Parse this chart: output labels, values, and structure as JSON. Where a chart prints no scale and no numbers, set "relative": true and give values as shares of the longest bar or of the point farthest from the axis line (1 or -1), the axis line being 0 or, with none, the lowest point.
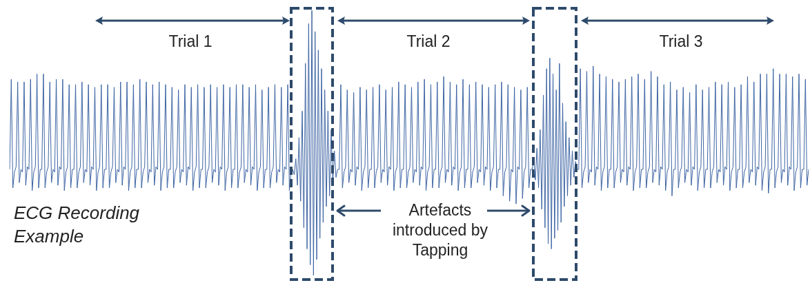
{
  "chart_data": {
    "type": "line",
    "relative": true,
    "marker": "none",
    "line_style": "solid",
    "legend": false,
    "annotations": [
      "Trial 1",
      "Trial 2",
      "Trial 3",
      "ECG Recording Example",
      "Artefacts introduced by Tapping"
    ],
    "categories": [
      null,
      null,
      null,
      null,
      null,
      null,
      null,
      null,
      null,
      null,
      null,
      null,
      null,
      null,
      null,
      null,
      null,
      null,
      null,
      null,
      null,
      null,
      null,
      null,
      null,
      null,
      null,
      null,
      null,
      null,
      null,
      null,
      null,
      null,
      null,
      null,
      null,
      null,
      null,
      null,
      null,
      null,
      null,
      null,
      null,
      null,
      null,
      null,
      null,
      null,
      null,
      null,
      null,
      null,
      null,
      null,
      null,
      null,
      null,
      null,
      null,
      null,
      null,
      null,
      null,
      null,
      null,
      null,
      null,
      null,
      null,
      null,
      null,
      null,
      null,
      null,
      null,
      null,
      null,
      null,
      null,
      null,
      null,
      null,
      null,
      null,
      null,
      null,
      null,
      null,
      null,
      null,
      null,
      null,
      null,
      null,
      null,
      null,
      null,
      null,
      null,
      null,
      null,
      null,
      null,
      null,
      null,
      null,
      null,
      null,
      null,
      null,
      null,
      null,
      null,
      null,
      null,
      null,
      null,
      null,
      null,
      null,
      null,
      null,
      null,
      null,
      null,
      null,
      null,
      null,
      null,
      null,
      null,
      null,
      null,
      null,
      null,
      null,
      null,
      null,
      null,
      null,
      null,
      null,
      null,
      null,
      null,
      null,
      null,
      null,
      null,
      null,
      null,
      null,
      null,
      null,
      null,
      null,
      null,
      null,
      null,
      null,
      null,
      null,
      null,
      null,
      null,
      null,
      null,
      null,
      null,
      null,
      null,
      null,
      null,
      null,
      null,
      null,
      null,
      null,
      null,
      null,
      null,
      null,
      null,
      null,
      null,
      null,
      null,
      null,
      null,
      null,
      null,
      null,
      null,
      null,
      null,
      null,
      null,
      null,
      null,
      null,
      null,
      null,
      null,
      null,
      null,
      null,
      null,
      null,
      null,
      null,
      null,
      null,
      null,
      null,
      null,
      null,
      null,
      null,
      null,
      null,
      null,
      null,
      null,
      null,
      null,
      null,
      null,
      null,
      null,
      null,
      null,
      null,
      null,
      null,
      null,
      null,
      null,
      null,
      null,
      null,
      null,
      null,
      null,
      null,
      null,
      null,
      null,
      null,
      null,
      null,
      null,
      null,
      null,
      null,
      null,
      null,
      null,
      null,
      null,
      null,
      null,
      null,
      null,
      null,
      null,
      null,
      null,
      null,
      null,
      null,
      null,
      null,
      null,
      null,
      null,
      null,
      null,
      null,
      null,
      null,
      null,
      null,
      null,
      null,
      null,
      null,
      null,
      null,
      null,
      null,
      null,
      null,
      null,
      null,
      null,
      null,
      null,
      null,
      null,
      null,
      null,
      null,
      null,
      null,
      null,
      null,
      null,
      null,
      null,
      null,
      null,
      null,
      null,
      null,
      null,
      null,
      null,
      null,
      null,
      null,
      null,
      null,
      null,
      null,
      null,
      null,
      null,
      null,
      null,
      null,
      null,
      null,
      null,
      null,
      null,
      null,
      null,
      null,
      null,
      null,
      null,
      null,
      null,
      null,
      null,
      null,
      null,
      null,
      null,
      null,
      null,
      null,
      null,
      null,
      null,
      null,
      null,
      null,
      null,
      null,
      null,
      null,
      null,
      null,
      null,
      null,
      null,
      null,
      null,
      null,
      null,
      null,
      null,
      null,
      null,
      null,
      null,
      null,
      null,
      null,
      null,
      null,
      null,
      null,
      null,
      null,
      null,
      null,
      null,
      null,
      null,
      null,
      null,
      null,
      null,
      null,
      null,
      null,
      null,
      null,
      null,
      null,
      null,
      null,
      null,
      null,
      null,
      null,
      null,
      null,
      null,
      null,
      null,
      null,
      null,
      null,
      null,
      null,
      null,
      null,
      null,
      null,
      null,
      null,
      null,
      null,
      null,
      null,
      null,
      null,
      null,
      null,
      null,
      null,
      null,
      null,
      null,
      null,
      null,
      null,
      null,
      null,
      null,
      null,
      null,
      null,
      null,
      null,
      null,
      null,
      null,
      null,
      null,
      null,
      null,
      null,
      null,
      null,
      null,
      null,
      null,
      null,
      null,
      null,
      null,
      null,
      null,
      null,
      null,
      null,
      null,
      null,
      null,
      null,
      null,
      null,
      null,
      null,
      null,
      null,
      null,
      null,
      null,
      null,
      null,
      null,
      null,
      null,
      null,
      null,
      null,
      null,
      null,
      null,
      null,
      null
    ],
    "series": [
      {
        "color": "#3d64a3",
        "values": [
          0.4,
          0.74,
          0.33,
          0.39,
          0.41,
          0.73,
          0.35,
          0.4,
          0.39,
          0.73,
          0.34,
          0.41,
          0.4,
          0.74,
          0.32,
          0.39,
          0.41,
          0.76,
          0.33,
          0.4,
          0.4,
          0.76,
          0.33,
          0.39,
          0.41,
          0.73,
          0.35,
          0.4,
          0.39,
          0.74,
          0.34,
          0.41,
          0.4,
          0.74,
          0.32,
          0.39,
          0.41,
          0.72,
          0.33,
          0.4,
          0.4,
          0.72,
          0.33,
          0.39,
          0.41,
          0.73,
          0.35,
          0.4,
          0.39,
          0.72,
          0.34,
          0.41,
          0.4,
          0.71,
          0.32,
          0.39,
          0.41,
          0.72,
          0.33,
          0.4,
          0.4,
          0.72,
          0.33,
          0.39,
          0.41,
          0.71,
          0.35,
          0.4,
          0.39,
          0.73,
          0.34,
          0.41,
          0.4,
          0.73,
          0.32,
          0.39,
          0.41,
          0.72,
          0.33,
          0.4,
          0.4,
          0.74,
          0.33,
          0.39,
          0.41,
          0.73,
          0.35,
          0.4,
          0.39,
          0.72,
          0.34,
          0.41,
          0.4,
          0.73,
          0.32,
          0.39,
          0.41,
          0.72,
          0.33,
          0.4,
          0.4,
          0.71,
          0.33,
          0.39,
          0.41,
          0.7,
          0.35,
          0.4,
          0.39,
          0.72,
          0.34,
          0.41,
          0.4,
          0.71,
          0.32,
          0.39,
          0.41,
          0.72,
          0.33,
          0.4,
          0.4,
          0.71,
          0.33,
          0.39,
          0.41,
          0.72,
          0.35,
          0.4,
          0.39,
          0.71,
          0.34,
          0.41,
          0.4,
          0.72,
          0.32,
          0.39,
          0.41,
          0.71,
          0.33,
          0.4,
          0.4,
          0.72,
          0.33,
          0.39,
          0.41,
          0.72,
          0.35,
          0.4,
          0.39,
          0.71,
          0.34,
          0.41,
          0.4,
          0.72,
          0.32,
          0.39,
          0.41,
          0.7,
          0.33,
          0.4,
          0.4,
          0.71,
          0.33,
          0.39,
          0.41,
          0.72,
          0.35,
          0.4,
          0.39,
          0.71,
          0.34,
          0.41,
          0.4,
          0.72,
          0.32,
          0.39,
          0.4,
          0.38,
          0.44,
          0.34,
          0.52,
          0.28,
          0.62,
          0.18,
          0.8,
          0.1,
          0.95,
          0.04,
          1.0,
          0.0,
          0.92,
          0.06,
          0.85,
          0.14,
          0.78,
          0.2,
          0.7,
          0.26,
          0.62,
          0.3,
          0.55,
          0.34,
          0.47,
          0.37,
          0.4,
          0.4,
          0.72,
          0.33,
          0.39,
          0.41,
          0.7,
          0.35,
          0.4,
          0.39,
          0.69,
          0.34,
          0.41,
          0.4,
          0.71,
          0.32,
          0.39,
          0.41,
          0.7,
          0.33,
          0.4,
          0.4,
          0.71,
          0.33,
          0.39,
          0.41,
          0.72,
          0.35,
          0.4,
          0.39,
          0.7,
          0.34,
          0.41,
          0.4,
          0.71,
          0.32,
          0.39,
          0.41,
          0.73,
          0.33,
          0.4,
          0.4,
          0.72,
          0.33,
          0.39,
          0.41,
          0.71,
          0.35,
          0.4,
          0.39,
          0.73,
          0.34,
          0.41,
          0.4,
          0.74,
          0.32,
          0.39,
          0.41,
          0.72,
          0.33,
          0.4,
          0.4,
          0.73,
          0.33,
          0.39,
          0.41,
          0.75,
          0.35,
          0.4,
          0.39,
          0.73,
          0.34,
          0.41,
          0.4,
          0.72,
          0.32,
          0.39,
          0.41,
          0.74,
          0.33,
          0.4,
          0.4,
          0.72,
          0.33,
          0.39,
          0.41,
          0.73,
          0.35,
          0.4,
          0.39,
          0.72,
          0.34,
          0.41,
          0.4,
          0.71,
          0.32,
          0.39,
          0.41,
          0.72,
          0.33,
          0.4,
          0.4,
          0.73,
          0.3,
          0.39,
          0.41,
          0.72,
          0.28,
          0.4,
          0.39,
          0.71,
          0.27,
          0.41,
          0.4,
          0.7,
          0.29,
          0.39,
          0.41,
          0.71,
          0.33,
          0.4,
          0.4,
          0.44,
          0.36,
          0.48,
          0.33,
          0.55,
          0.25,
          0.68,
          0.18,
          0.78,
          0.12,
          0.82,
          0.1,
          0.76,
          0.14,
          0.7,
          0.17,
          0.8,
          0.2,
          0.65,
          0.26,
          0.58,
          0.3,
          0.52,
          0.34,
          0.47,
          0.37,
          0.43,
          0.4,
          0.4,
          0.78,
          0.33,
          0.39,
          0.41,
          0.77,
          0.35,
          0.4,
          0.39,
          0.79,
          0.34,
          0.41,
          0.4,
          0.76,
          0.32,
          0.39,
          0.41,
          0.75,
          0.33,
          0.4,
          0.4,
          0.74,
          0.33,
          0.39,
          0.41,
          0.73,
          0.35,
          0.4,
          0.39,
          0.74,
          0.34,
          0.41,
          0.4,
          0.75,
          0.32,
          0.39,
          0.41,
          0.76,
          0.33,
          0.4,
          0.4,
          0.74,
          0.33,
          0.39,
          0.41,
          0.77,
          0.35,
          0.4,
          0.39,
          0.75,
          0.34,
          0.41,
          0.4,
          0.72,
          0.32,
          0.39,
          0.41,
          0.73,
          0.3,
          0.4,
          0.4,
          0.7,
          0.33,
          0.39,
          0.41,
          0.71,
          0.35,
          0.4,
          0.39,
          0.69,
          0.34,
          0.41,
          0.4,
          0.72,
          0.32,
          0.39,
          0.41,
          0.7,
          0.33,
          0.4,
          0.4,
          0.71,
          0.33,
          0.39,
          0.41,
          0.73,
          0.35,
          0.4,
          0.39,
          0.72,
          0.34,
          0.41,
          0.4,
          0.73,
          0.32,
          0.39,
          0.41,
          0.71,
          0.33,
          0.4,
          0.4,
          0.72,
          0.33,
          0.39,
          0.41,
          0.75,
          0.35,
          0.4,
          0.39,
          0.73,
          0.34,
          0.41,
          0.4,
          0.76,
          0.32,
          0.39,
          0.41,
          0.76,
          0.31,
          0.4,
          0.4,
          0.78,
          0.33,
          0.39,
          0.41,
          0.76,
          0.35,
          0.4,
          0.39,
          0.76,
          0.34,
          0.41,
          0.4,
          0.75,
          0.32,
          0.39,
          0.41,
          0.76,
          0.33,
          0.4,
          0.4,
          0.74,
          0.34,
          0.4
        ]
      }
    ]
  }
}
